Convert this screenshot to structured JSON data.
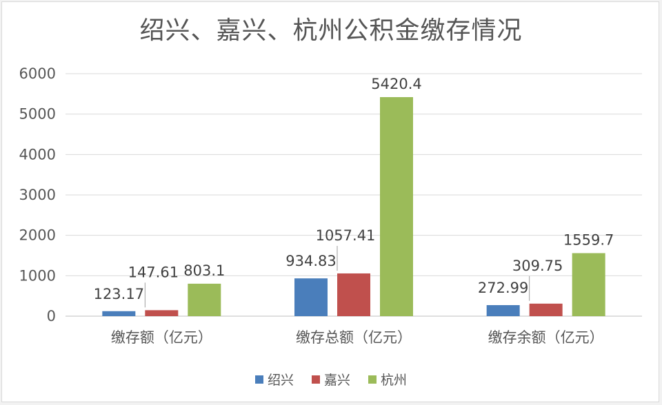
{
  "chart_data": {
    "type": "bar",
    "title": "绍兴、嘉兴、杭州公积金缴存情况",
    "categories": [
      "缴存额（亿元）",
      "缴存总额（亿元）",
      "缴存余额（亿元）"
    ],
    "series": [
      {
        "name": "绍兴",
        "color": "#4a7ebb",
        "values": [
          123.17,
          934.83,
          272.99
        ],
        "labels": [
          "123.17",
          "934.83",
          "272.99"
        ]
      },
      {
        "name": "嘉兴",
        "color": "#c0504d",
        "values": [
          147.61,
          1057.41,
          309.75
        ],
        "labels": [
          "147.61",
          "1057.41",
          "309.75"
        ]
      },
      {
        "name": "杭州",
        "color": "#9bbb59",
        "values": [
          803.1,
          5420.4,
          1559.7
        ],
        "labels": [
          "803.1",
          "5420.4",
          "1559.7"
        ]
      }
    ],
    "yticks": [
      "0",
      "1000",
      "2000",
      "3000",
      "4000",
      "5000",
      "6000"
    ],
    "ylim": [
      0,
      6000
    ],
    "grid": true,
    "legend_position": "bottom"
  }
}
